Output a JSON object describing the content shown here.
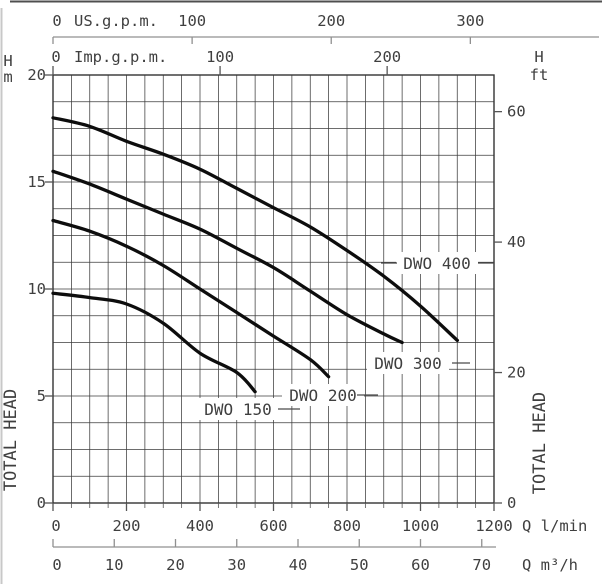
{
  "window": {
    "background": "#ffffff",
    "edge_top_color": "#4f4f4f",
    "edge_left_color": "#c8c8c8"
  },
  "chart_data": {
    "type": "line",
    "title": "",
    "description_semantics": "Pump performance curves: total head vs flow rate",
    "grid": "on",
    "curve_color": "#0d0d0d",
    "grid_color": "#3c3c3c",
    "x_axes": {
      "us_gpm": {
        "label": "US.g.p.m.",
        "ticks": [
          0,
          100,
          200,
          300
        ]
      },
      "imp_gpm": {
        "label": "Imp.g.p.m.",
        "ticks": [
          0,
          100,
          200
        ]
      },
      "l_min": {
        "label": "Q l/min",
        "ticks": [
          0,
          200,
          400,
          600,
          800,
          1000,
          1200
        ],
        "range": [
          0,
          1200
        ],
        "minor_step": 50
      },
      "m3_h": {
        "label": "Q m³/h",
        "ticks": [
          0,
          10,
          20,
          30,
          40,
          50,
          60,
          70
        ]
      }
    },
    "y_axes": {
      "meters": {
        "unit_top": [
          "H",
          "m"
        ],
        "axis_title": "TOTAL HEAD",
        "ticks": [
          20,
          15,
          10,
          5,
          0
        ],
        "range": [
          0,
          20
        ],
        "minor_step": 1.25
      },
      "feet": {
        "unit_top": [
          "H",
          "ft"
        ],
        "axis_title": "TOTAL HEAD",
        "ticks": [
          60,
          40,
          20,
          0
        ]
      }
    },
    "series": [
      {
        "name": "DWO 150",
        "points_q_lmin_h_m": [
          [
            0,
            9.8
          ],
          [
            100,
            9.6
          ],
          [
            200,
            9.3
          ],
          [
            300,
            8.4
          ],
          [
            400,
            7.0
          ],
          [
            500,
            6.1
          ],
          [
            550,
            5.2
          ]
        ]
      },
      {
        "name": "DWO 200",
        "points_q_lmin_h_m": [
          [
            0,
            13.2
          ],
          [
            100,
            12.7
          ],
          [
            200,
            12.0
          ],
          [
            300,
            11.1
          ],
          [
            400,
            10.0
          ],
          [
            500,
            8.9
          ],
          [
            600,
            7.8
          ],
          [
            700,
            6.7
          ],
          [
            750,
            5.9
          ]
        ]
      },
      {
        "name": "DWO 300",
        "points_q_lmin_h_m": [
          [
            0,
            15.5
          ],
          [
            100,
            14.9
          ],
          [
            200,
            14.2
          ],
          [
            300,
            13.5
          ],
          [
            400,
            12.8
          ],
          [
            500,
            11.9
          ],
          [
            600,
            11.0
          ],
          [
            700,
            9.9
          ],
          [
            800,
            8.8
          ],
          [
            900,
            7.9
          ],
          [
            950,
            7.5
          ]
        ]
      },
      {
        "name": "DWO 400",
        "points_q_lmin_h_m": [
          [
            0,
            18.0
          ],
          [
            100,
            17.6
          ],
          [
            200,
            16.9
          ],
          [
            300,
            16.3
          ],
          [
            400,
            15.6
          ],
          [
            500,
            14.7
          ],
          [
            600,
            13.8
          ],
          [
            700,
            12.9
          ],
          [
            800,
            11.8
          ],
          [
            900,
            10.6
          ],
          [
            1000,
            9.2
          ],
          [
            1100,
            7.6
          ]
        ]
      }
    ]
  }
}
